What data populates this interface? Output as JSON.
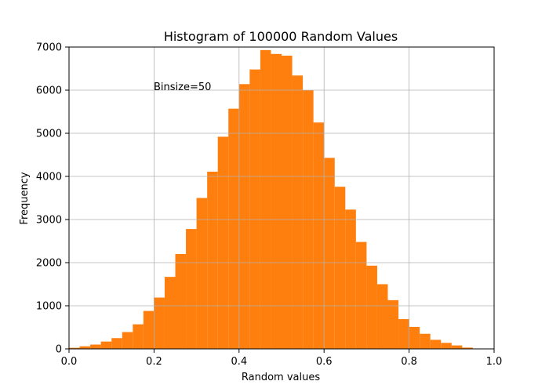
{
  "chart_data": {
    "type": "bar",
    "title": "Histogram of 100000 Random Values",
    "xlabel": "Random values",
    "ylabel": "Frequency",
    "annotation": "Binsize=50",
    "xlim": [
      0.0,
      1.0
    ],
    "ylim": [
      0,
      7000
    ],
    "xticks": [
      "0.0",
      "0.2",
      "0.4",
      "0.6",
      "0.8",
      "1.0"
    ],
    "yticks": [
      "0",
      "1000",
      "2000",
      "3000",
      "4000",
      "5000",
      "6000",
      "7000"
    ],
    "grid": true,
    "bar_color": "#ff7f0e",
    "baseline_color": "#1f77b4",
    "bins": {
      "start": 0.0,
      "width": 0.025
    },
    "values": [
      25,
      60,
      100,
      170,
      250,
      390,
      570,
      880,
      1190,
      1670,
      2200,
      2780,
      3500,
      4110,
      4920,
      5570,
      6140,
      6480,
      6930,
      6840,
      6800,
      6340,
      6000,
      5250,
      4430,
      3760,
      3230,
      2480,
      1930,
      1500,
      1130,
      690,
      510,
      350,
      210,
      140,
      80,
      30
    ]
  }
}
